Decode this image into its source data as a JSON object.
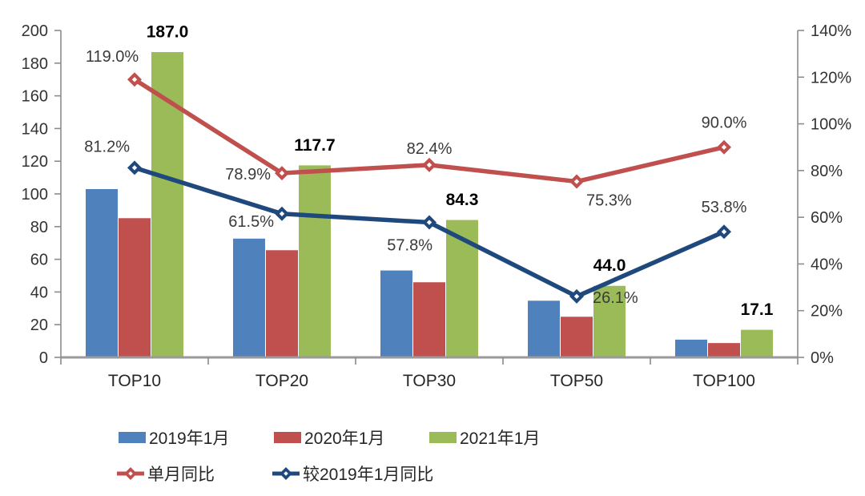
{
  "chart_data": {
    "type": "bar",
    "subtype": "grouped-bars-with-lines",
    "title": "",
    "categories": [
      "TOP10",
      "TOP20",
      "TOP30",
      "TOP50",
      "TOP100"
    ],
    "bar_series": [
      {
        "name": "2019年1月",
        "color": "#4F81BD",
        "values": [
          103.2,
          72.9,
          53.4,
          34.9,
          11.1
        ],
        "labels": [
          "",
          "",
          "",
          "",
          ""
        ]
      },
      {
        "name": "2020年1月",
        "color": "#C0504D",
        "values": [
          85.4,
          65.8,
          46.2,
          25.1,
          9.0
        ],
        "labels": [
          "",
          "",
          "",
          "",
          ""
        ]
      },
      {
        "name": "2021年1月",
        "color": "#9BBB59",
        "values": [
          187.0,
          117.7,
          84.3,
          44.0,
          17.1
        ],
        "labels": [
          "187.0",
          "117.7",
          "84.3",
          "44.0",
          "17.1"
        ]
      }
    ],
    "line_series": [
      {
        "name": "单月同比",
        "color": "#C0504D",
        "axis": "right",
        "values_pct": [
          119.0,
          78.9,
          82.4,
          75.3,
          90.0
        ],
        "labels": [
          "119.0%",
          "78.9%",
          "82.4%",
          "75.3%",
          "90.0%"
        ],
        "marker": "diamond"
      },
      {
        "name": "较2019年1月同比",
        "color": "#1F497D",
        "axis": "right",
        "values_pct": [
          81.2,
          61.5,
          57.8,
          26.1,
          53.8
        ],
        "labels": [
          "81.2%",
          "61.5%",
          "57.8%",
          "26.1%",
          "53.8%"
        ],
        "marker": "diamond"
      }
    ],
    "left_axis": {
      "min": 0,
      "max": 200,
      "step": 20,
      "ticks": [
        "0",
        "20",
        "40",
        "60",
        "80",
        "100",
        "120",
        "140",
        "160",
        "180",
        "200"
      ]
    },
    "right_axis": {
      "min": 0,
      "max": 140,
      "step": 20,
      "ticks": [
        "0%",
        "20%",
        "40%",
        "60%",
        "80%",
        "100%",
        "120%",
        "140%"
      ]
    },
    "grid": false,
    "legend_position": "bottom",
    "legend_rows": [
      [
        {
          "label": "2019年1月",
          "swatch": "bar",
          "color": "#4F81BD"
        },
        {
          "label": "2020年1月",
          "swatch": "bar",
          "color": "#C0504D"
        },
        {
          "label": "2021年1月",
          "swatch": "bar",
          "color": "#9BBB59"
        }
      ],
      [
        {
          "label": "单月同比",
          "swatch": "line-diamond",
          "color": "#C0504D"
        },
        {
          "label": "较2019年1月同比",
          "swatch": "line-diamond",
          "color": "#1F497D"
        }
      ]
    ],
    "colors": {
      "background": "#FFFFFF",
      "axis_line": "#8C8C8C",
      "bar_blue": "#4F81BD",
      "bar_red": "#C0504D",
      "bar_green": "#9BBB59",
      "line_red": "#C0504D",
      "line_navy": "#1F497D"
    }
  }
}
